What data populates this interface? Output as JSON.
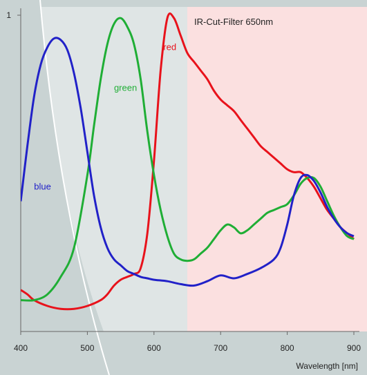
{
  "chart_data": {
    "type": "line",
    "title": "IR-Cut-Filter 650nm",
    "xlabel": "Wavelength [nm]",
    "ylabel": "",
    "xlim": [
      400,
      900
    ],
    "ylim": [
      0,
      1
    ],
    "x_ticks": [
      {
        "value": 400,
        "label": "400"
      },
      {
        "value": 500,
        "label": "500"
      },
      {
        "value": 600,
        "label": "600"
      },
      {
        "value": 700,
        "label": "700"
      },
      {
        "value": 800,
        "label": "800"
      },
      {
        "value": 900,
        "label": "900"
      }
    ],
    "y_ticks": [
      {
        "value": 1,
        "label": "1"
      }
    ],
    "cut_off_nm": 650,
    "colors": {
      "background": "#c9d3d3",
      "pass_region": "#dfe5e5",
      "cut_region": "#fbe0e0",
      "red": "#e8121b",
      "green": "#1fae35",
      "blue": "#2121c8"
    },
    "series": [
      {
        "name": "red",
        "color_key": "red",
        "label_at": [
          614,
          0.88
        ],
        "x": [
          400,
          410,
          420,
          440,
          460,
          480,
          500,
          520,
          530,
          540,
          550,
          560,
          570,
          580,
          590,
          600,
          610,
          620,
          630,
          640,
          650,
          660,
          670,
          680,
          690,
          700,
          710,
          720,
          730,
          740,
          750,
          760,
          770,
          780,
          790,
          800,
          810,
          820,
          830,
          840,
          850,
          860,
          870,
          880,
          890,
          900
        ],
        "y": [
          0.055,
          0.04,
          0.02,
          0.0,
          -0.01,
          -0.01,
          0.0,
          0.02,
          0.04,
          0.07,
          0.09,
          0.1,
          0.11,
          0.13,
          0.25,
          0.5,
          0.81,
          0.99,
          0.99,
          0.93,
          0.87,
          0.84,
          0.81,
          0.78,
          0.74,
          0.71,
          0.69,
          0.67,
          0.64,
          0.61,
          0.58,
          0.55,
          0.53,
          0.51,
          0.49,
          0.47,
          0.46,
          0.46,
          0.44,
          0.41,
          0.37,
          0.33,
          0.3,
          0.27,
          0.25,
          0.23
        ]
      },
      {
        "name": "green",
        "color_key": "green",
        "label_at": [
          540,
          0.74
        ],
        "x": [
          400,
          420,
          440,
          460,
          480,
          500,
          510,
          520,
          530,
          540,
          550,
          560,
          570,
          580,
          590,
          600,
          610,
          620,
          630,
          640,
          650,
          660,
          670,
          680,
          690,
          700,
          710,
          720,
          730,
          740,
          750,
          760,
          770,
          780,
          790,
          800,
          810,
          820,
          830,
          840,
          850,
          860,
          870,
          880,
          890,
          900
        ],
        "y": [
          0.02,
          0.02,
          0.04,
          0.1,
          0.2,
          0.45,
          0.62,
          0.78,
          0.9,
          0.97,
          0.99,
          0.96,
          0.9,
          0.78,
          0.6,
          0.45,
          0.33,
          0.24,
          0.18,
          0.16,
          0.155,
          0.16,
          0.18,
          0.2,
          0.23,
          0.26,
          0.28,
          0.27,
          0.25,
          0.26,
          0.28,
          0.3,
          0.32,
          0.33,
          0.34,
          0.35,
          0.38,
          0.42,
          0.44,
          0.44,
          0.41,
          0.36,
          0.31,
          0.27,
          0.24,
          0.23
        ]
      },
      {
        "name": "blue",
        "color_key": "blue",
        "label_at": [
          420,
          0.4
        ],
        "x": [
          400,
          410,
          420,
          430,
          440,
          450,
          460,
          470,
          480,
          490,
          500,
          510,
          520,
          530,
          540,
          550,
          560,
          570,
          580,
          590,
          600,
          620,
          640,
          660,
          680,
          700,
          720,
          740,
          760,
          780,
          790,
          800,
          810,
          820,
          830,
          840,
          850,
          860,
          870,
          880,
          890,
          900
        ],
        "y": [
          0.36,
          0.55,
          0.72,
          0.83,
          0.89,
          0.92,
          0.915,
          0.88,
          0.8,
          0.68,
          0.53,
          0.38,
          0.27,
          0.2,
          0.16,
          0.14,
          0.12,
          0.11,
          0.1,
          0.095,
          0.09,
          0.085,
          0.075,
          0.07,
          0.085,
          0.105,
          0.095,
          0.11,
          0.13,
          0.16,
          0.2,
          0.28,
          0.38,
          0.44,
          0.45,
          0.43,
          0.39,
          0.34,
          0.3,
          0.27,
          0.25,
          0.24
        ]
      }
    ],
    "grid": false,
    "legend": "inline labels"
  }
}
